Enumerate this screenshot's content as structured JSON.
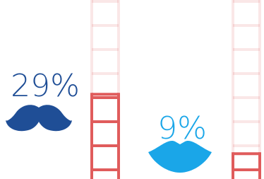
{
  "chart_data": {
    "type": "ladder",
    "values": [
      29,
      9
    ],
    "value_labels": [
      "29%",
      "9%"
    ],
    "colors": [
      "#1f4e96",
      "#1aa6e8"
    ],
    "ladder_color": "#e05c5c"
  }
}
